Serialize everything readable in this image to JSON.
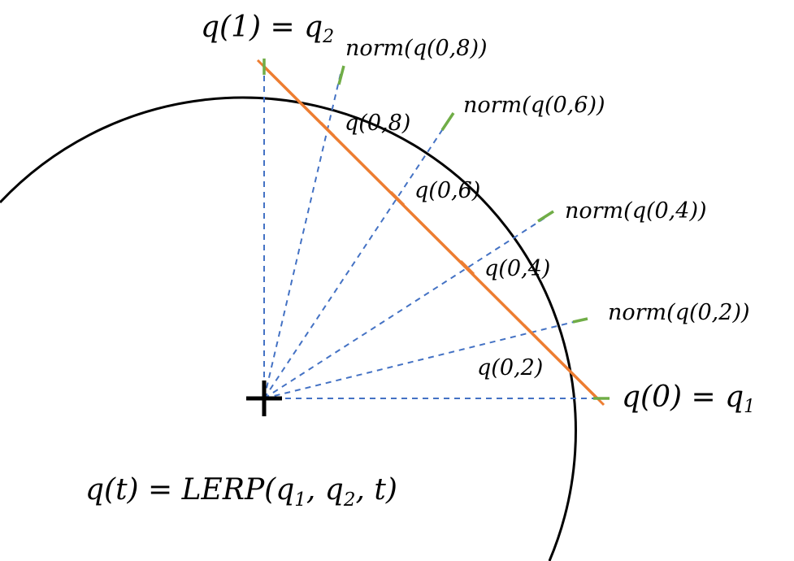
{
  "colors": {
    "circle": "#000000",
    "lerp_line": "#ED7D31",
    "ray": "#4472C4",
    "norm_tick": "#70AD47",
    "center_mark": "#000000"
  },
  "labels": {
    "q_end": "q(1) = q",
    "q_end_sub": "2",
    "q_start": "q(0) = q",
    "q_start_sub": "1",
    "norm_08": "norm(q(0,8))",
    "norm_06": "norm(q(0,6))",
    "norm_04": "norm(q(0,4))",
    "norm_02": "norm(q(0,2))",
    "q_08": "q(0,8)",
    "q_06": "q(0,6)",
    "q_04": "q(0,4)",
    "q_02": "q(0,2)",
    "formula_prefix": "q(t) = LERP(q",
    "formula_sub1": "1",
    "formula_comma": ", q",
    "formula_sub2": "2",
    "formula_suffix": ", t)"
  }
}
